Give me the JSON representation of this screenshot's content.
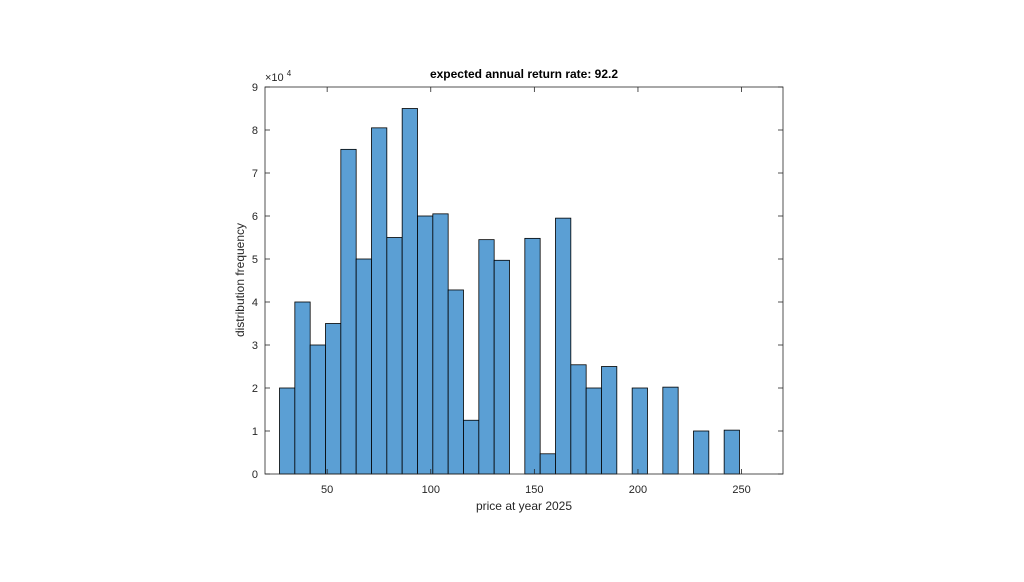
{
  "chart_data": {
    "type": "bar",
    "title": "expected annual return rate: 92.2",
    "xlabel": "price at year 2025",
    "ylabel": "distribution frequency",
    "y_exponent_label": "×10",
    "y_exponent_power": "4",
    "xlim": [
      20,
      270
    ],
    "ylim": [
      0,
      9
    ],
    "y_multiplier": 10000,
    "bin_width": 7.4,
    "x_ticks": [
      50,
      100,
      150,
      200,
      250
    ],
    "x_tick_labels": [
      "50",
      "100",
      "150",
      "200",
      "250"
    ],
    "y_ticks": [
      0,
      1,
      2,
      3,
      4,
      5,
      6,
      7,
      8,
      9
    ],
    "y_tick_labels": [
      "0",
      "1",
      "2",
      "3",
      "4",
      "5",
      "6",
      "7",
      "8",
      "9"
    ],
    "grid": false,
    "bar_color": "#5b9fd4",
    "bar_edge_color": "#000000",
    "bin_starts": [
      27,
      34.4,
      41.8,
      49.2,
      56.6,
      64,
      71.4,
      78.8,
      86.2,
      93.6,
      101,
      108.4,
      115.8,
      123.2,
      130.6,
      138,
      145.4,
      152.8,
      160.2,
      167.6,
      175,
      182.4,
      189.8,
      197.2,
      204.6,
      212,
      219.4,
      226.8,
      234.2,
      241.6,
      249
    ],
    "values": [
      2.0,
      4.0,
      3.0,
      3.5,
      7.55,
      5.0,
      8.05,
      5.5,
      8.5,
      6.0,
      6.05,
      4.28,
      1.25,
      5.45,
      4.97,
      0,
      5.48,
      0.47,
      5.95,
      2.54,
      2.0,
      2.5,
      0,
      2.0,
      0,
      2.02,
      0,
      1.0,
      0,
      1.02,
      0
    ]
  }
}
